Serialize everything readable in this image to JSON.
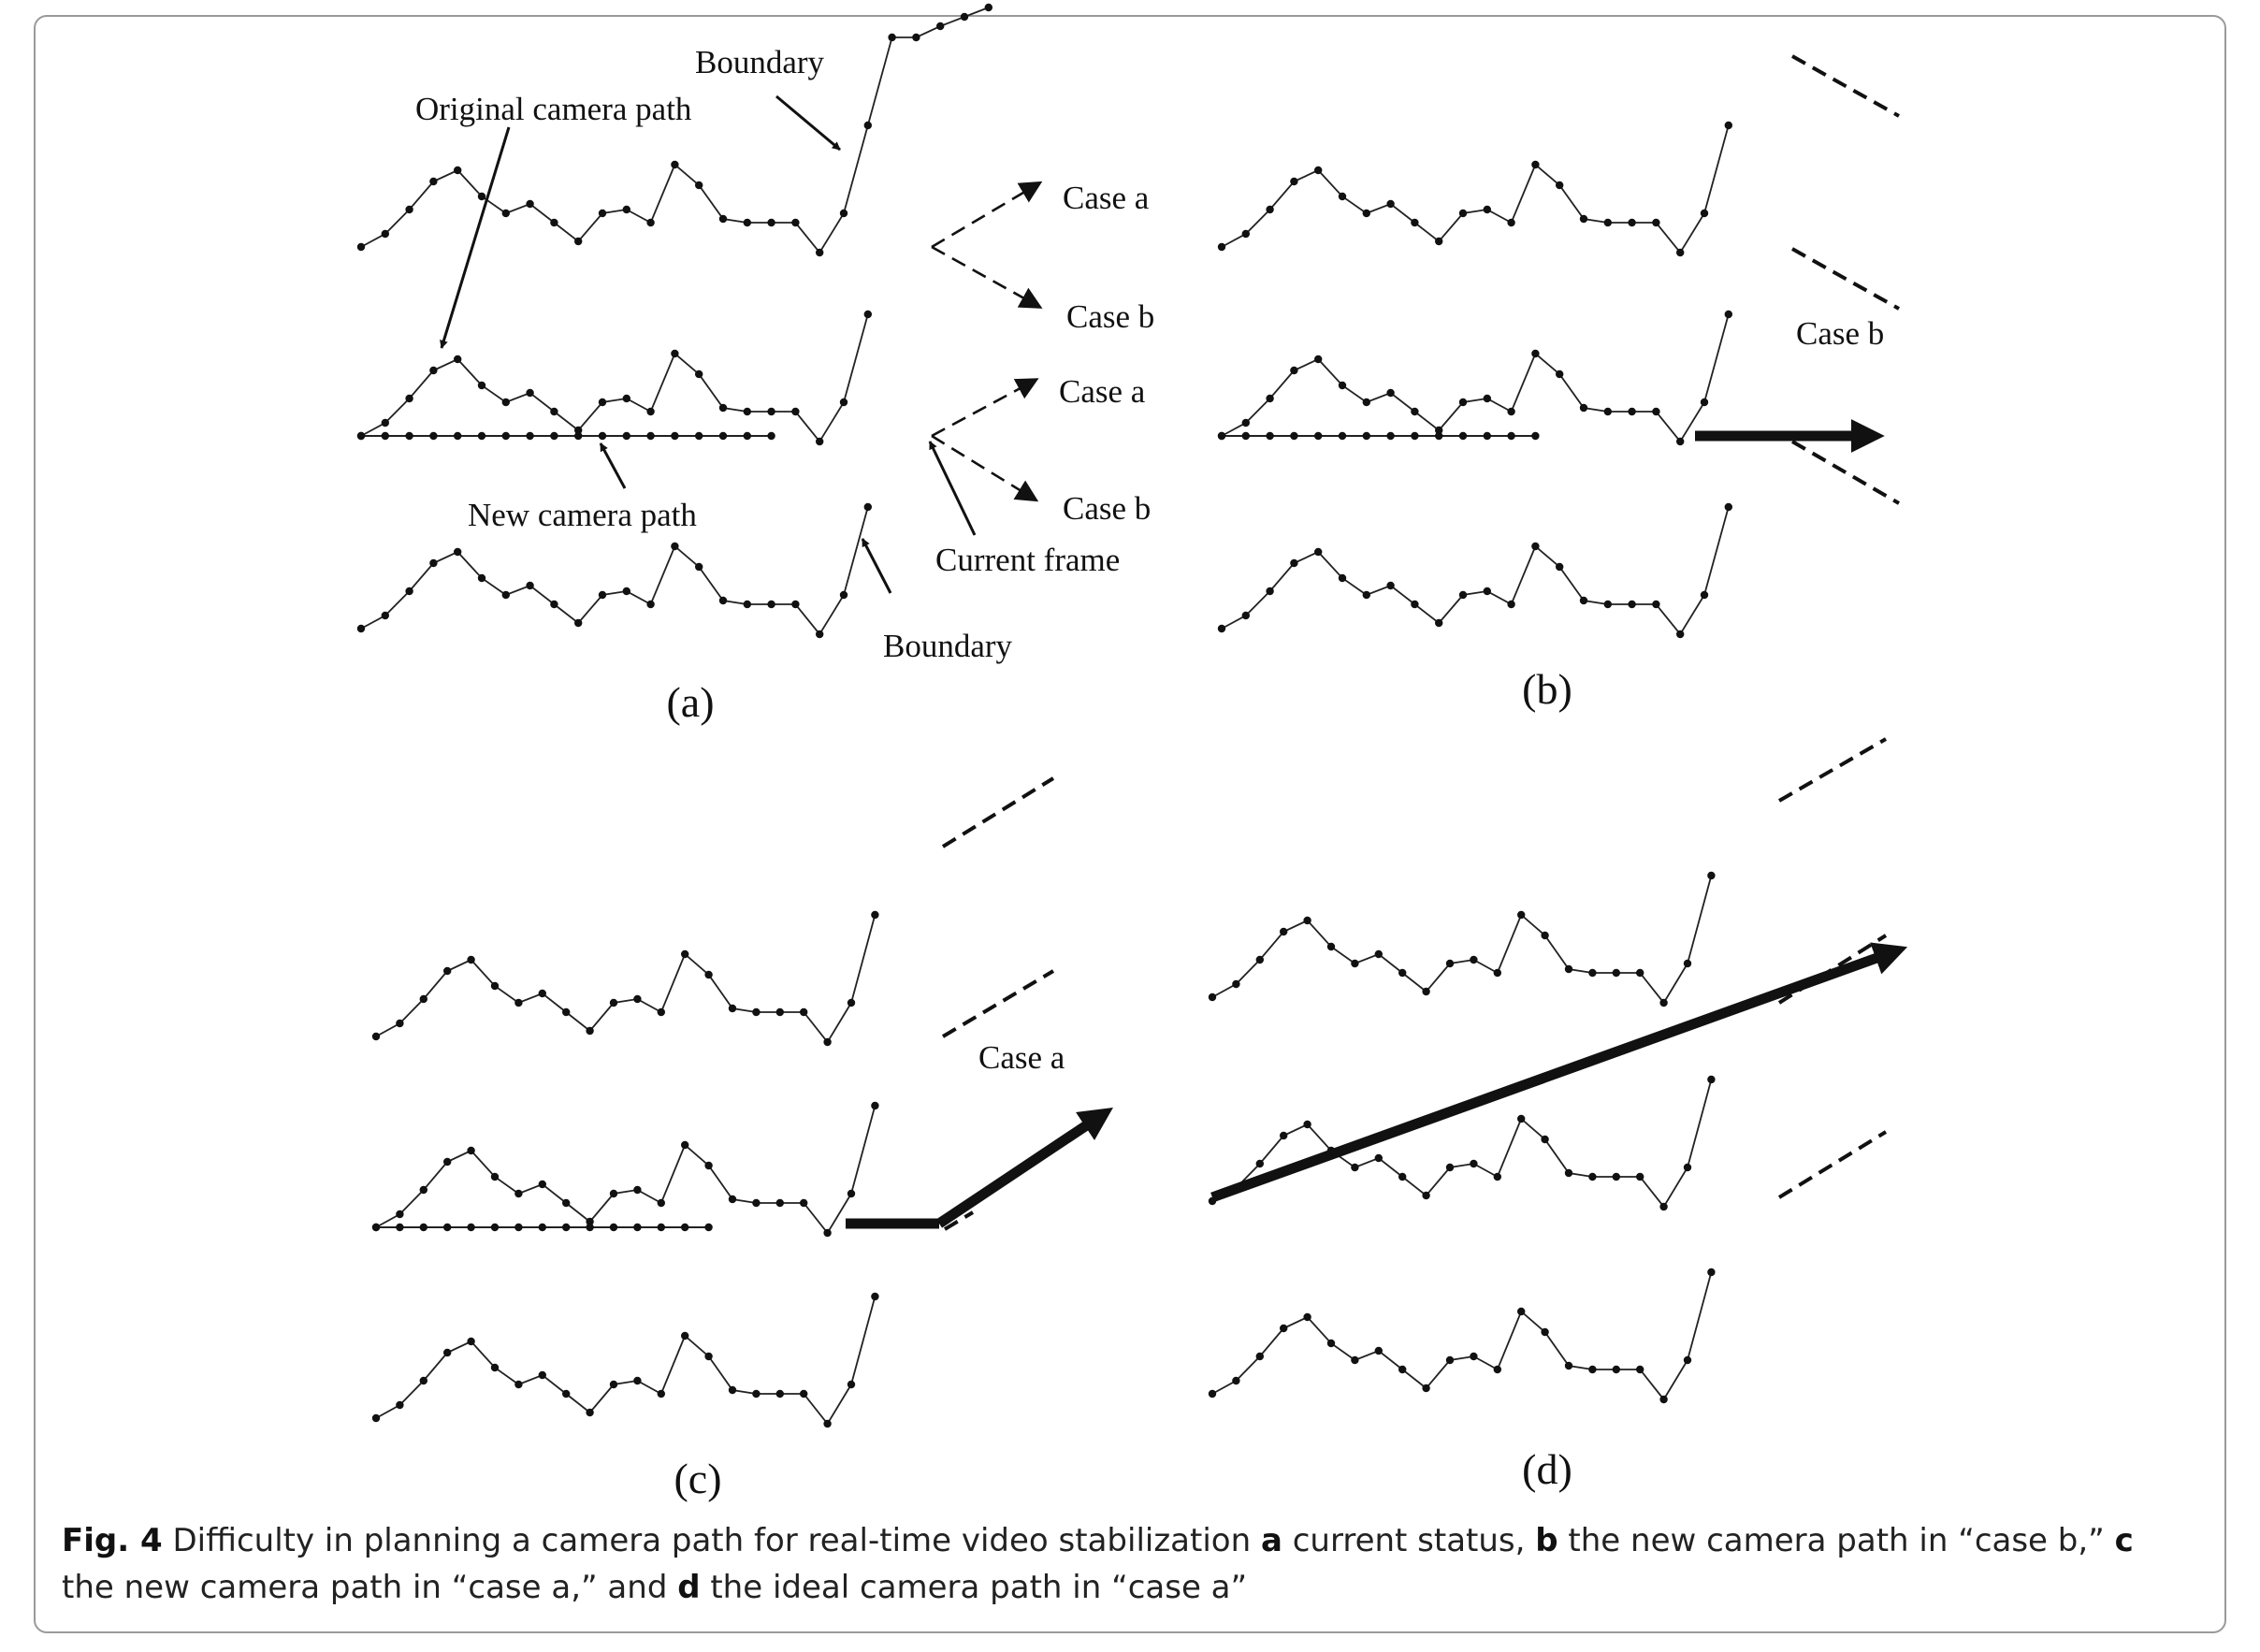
{
  "panels": [
    {
      "id": "a",
      "label": "(a)"
    },
    {
      "id": "b",
      "label": "(b)"
    },
    {
      "id": "c",
      "label": "(c)"
    },
    {
      "id": "d",
      "label": "(d)"
    }
  ],
  "annotations": {
    "boundary": "Boundary",
    "original_camera_path": "Original camera path",
    "new_camera_path": "New camera path",
    "current_frame": "Current frame",
    "case_a": "Case a",
    "case_b": "Case b"
  },
  "caption": {
    "fig_label": "Fig. 4",
    "text_1": " Difficulty in planning a camera path for real-time video stabilization ",
    "bold_a": "a",
    "text_2": " current status, ",
    "bold_b": "b",
    "text_3": " the new camera path in “case b,” ",
    "bold_c": "c",
    "text_4": " the new camera path in “case a,” and ",
    "bold_d": "d",
    "text_5": " the ideal camera path in “case a”"
  },
  "colors": {
    "line": "#222222",
    "frame_border": "#9a9a9a"
  }
}
